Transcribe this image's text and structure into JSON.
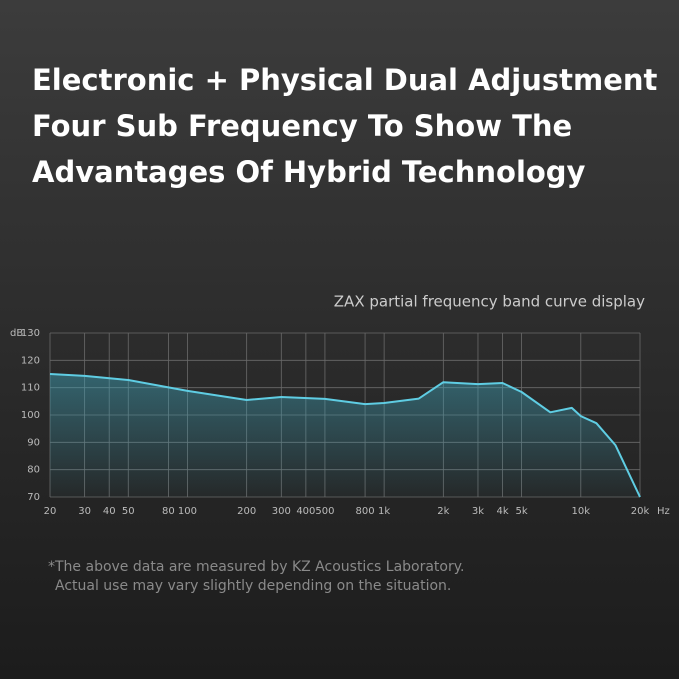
{
  "chart_data": {
    "type": "line",
    "title_lines": [
      "Electronic + Physical Dual Adjustment",
      "Four Sub Frequency To Show The",
      "Advantages Of Hybrid Technology"
    ],
    "subtitle": "ZAX partial frequency band curve display",
    "y_unit": "dB",
    "x_unit": "Hz",
    "footnote_lines": [
      "*The above data are measured by KZ Acoustics Laboratory.",
      "Actual use may vary slightly depending on the situation."
    ],
    "x_scale": "log",
    "x": [
      20,
      30,
      50,
      100,
      200,
      300,
      500,
      800,
      1000,
      1500,
      2000,
      3000,
      4000,
      5000,
      7000,
      9000,
      10000,
      12000,
      15000,
      20000
    ],
    "values": [
      115,
      114.3,
      112.8,
      108.8,
      105.5,
      106.6,
      105.9,
      104,
      104.4,
      106,
      112,
      111.3,
      111.7,
      108.4,
      101,
      102.6,
      99.6,
      97,
      89,
      70
    ],
    "color": "#5fcde3",
    "xlim": [
      20,
      20000
    ],
    "ylim": [
      70,
      130
    ],
    "yticks": [
      70,
      80,
      90,
      100,
      110,
      120,
      130
    ],
    "xticks": [
      20,
      30,
      40,
      50,
      80,
      100,
      200,
      300,
      400,
      500,
      800,
      {
        "value": 1000,
        "label": "1k"
      },
      {
        "value": 2000,
        "label": "2k"
      },
      {
        "value": 3000,
        "label": "3k"
      },
      {
        "value": 4000,
        "label": "4k"
      },
      {
        "value": 5000,
        "label": "5k"
      },
      {
        "value": 10000,
        "label": "10k"
      },
      {
        "value": 20000,
        "label": "20k"
      }
    ],
    "grid": true
  }
}
